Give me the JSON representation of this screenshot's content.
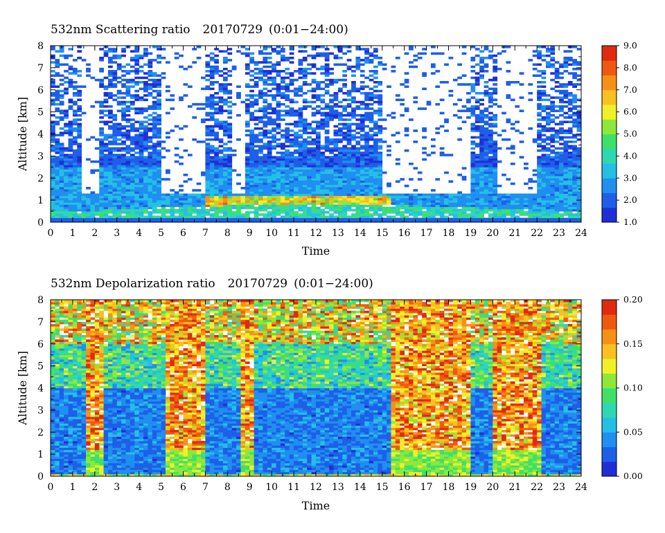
{
  "chart_data": [
    {
      "type": "heatmap",
      "title": "532nm Scattering ratio",
      "date": "20170729",
      "time_range": "(0:01−24:00)",
      "xlabel": "Time",
      "ylabel": "Altitude [km]",
      "x_ticks": [
        "0",
        "1",
        "2",
        "3",
        "4",
        "5",
        "6",
        "7",
        "8",
        "9",
        "10",
        "11",
        "12",
        "13",
        "14",
        "15",
        "16",
        "17",
        "18",
        "19",
        "20",
        "21",
        "22",
        "23",
        "24"
      ],
      "y_ticks": [
        "0",
        "1",
        "2",
        "3",
        "4",
        "5",
        "6",
        "7",
        "8"
      ],
      "xlim": [
        0,
        24
      ],
      "ylim": [
        0,
        8
      ],
      "colorbar": {
        "ticks": [
          "1.0",
          "2.0",
          "3.0",
          "4.0",
          "5.0",
          "6.0",
          "7.0",
          "8.0",
          "9.0"
        ],
        "range": [
          1.0,
          9.0
        ]
      },
      "features": {
        "clear_gaps_hours": [
          [
            1.5,
            2.2
          ],
          [
            5.1,
            6.9
          ],
          [
            8.2,
            8.7
          ],
          [
            15.0,
            19.0
          ],
          [
            20.3,
            22.0
          ]
        ],
        "boundary_layer_top_km": 0.6,
        "enhanced_layer_km": [
          0.6,
          1.2
        ]
      }
    },
    {
      "type": "heatmap",
      "title": "532nm Depolarization ratio",
      "date": "20170729",
      "time_range": "(0:01−24:00)",
      "xlabel": "Time",
      "ylabel": "Altitude [km]",
      "x_ticks": [
        "0",
        "1",
        "2",
        "3",
        "4",
        "5",
        "6",
        "7",
        "8",
        "9",
        "10",
        "11",
        "12",
        "13",
        "14",
        "15",
        "16",
        "17",
        "18",
        "19",
        "20",
        "21",
        "22",
        "23",
        "24"
      ],
      "y_ticks": [
        "0",
        "1",
        "2",
        "3",
        "4",
        "5",
        "6",
        "7",
        "8"
      ],
      "xlim": [
        0,
        24
      ],
      "ylim": [
        0,
        8
      ],
      "colorbar": {
        "ticks": [
          "0.00",
          "0.05",
          "0.10",
          "0.15",
          "0.20"
        ],
        "range": [
          0.0,
          0.2
        ]
      },
      "features": {
        "high_depol_columns_hours": [
          [
            1.6,
            2.4
          ],
          [
            5.3,
            7.0
          ],
          [
            8.6,
            9.2
          ],
          [
            15.4,
            19.0
          ],
          [
            20.0,
            22.2
          ]
        ]
      }
    }
  ],
  "palette": [
    "#1f2fd6",
    "#1e5fe8",
    "#1f8ff0",
    "#25bfe6",
    "#2fd8b0",
    "#3fe06a",
    "#8de83a",
    "#f0f028",
    "#f8c020",
    "#f89018",
    "#f05a10",
    "#e02a10"
  ]
}
